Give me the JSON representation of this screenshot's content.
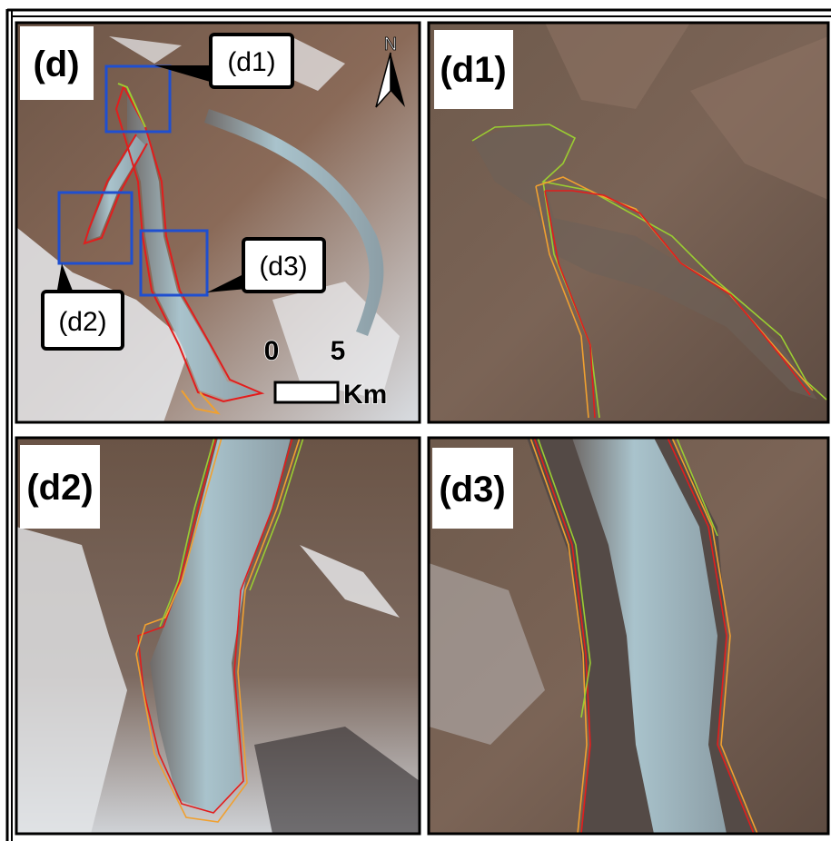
{
  "panels": [
    {
      "label": "(d)"
    },
    {
      "label": "(d1)"
    },
    {
      "label": "(d2)"
    },
    {
      "label": "(d3)"
    }
  ],
  "callouts": [
    "(d1)",
    "(d2)",
    "(d3)"
  ],
  "scale_bar": {
    "ticks": [
      0,
      5
    ],
    "unit": "Km"
  },
  "north_arrow": "N"
}
